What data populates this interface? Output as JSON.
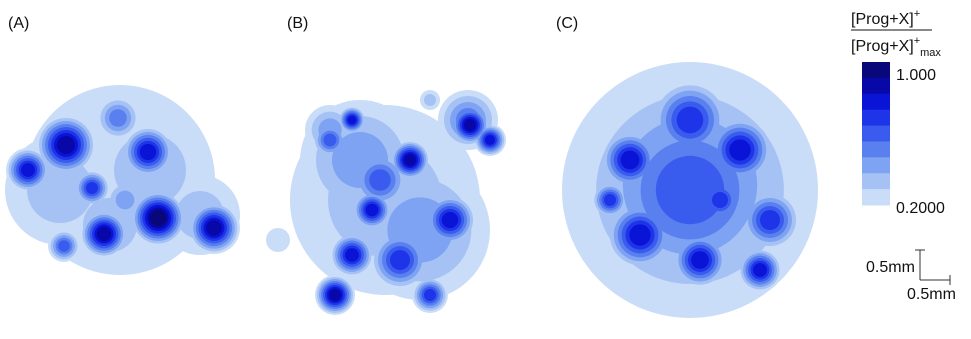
{
  "panels": [
    {
      "label": "(A)"
    },
    {
      "label": "(B)"
    },
    {
      "label": "(C)"
    }
  ],
  "colorbar": {
    "numerator": "[Prog+X]",
    "numerator_sup": "+",
    "denominator": "[Prog+X]",
    "denominator_sup": "+",
    "denominator_sub": "max",
    "max_label": "1.000",
    "min_label": "0.2000"
  },
  "scale_bar": {
    "vertical_label": "0.5mm",
    "horizontal_label": "0.5mm"
  }
}
